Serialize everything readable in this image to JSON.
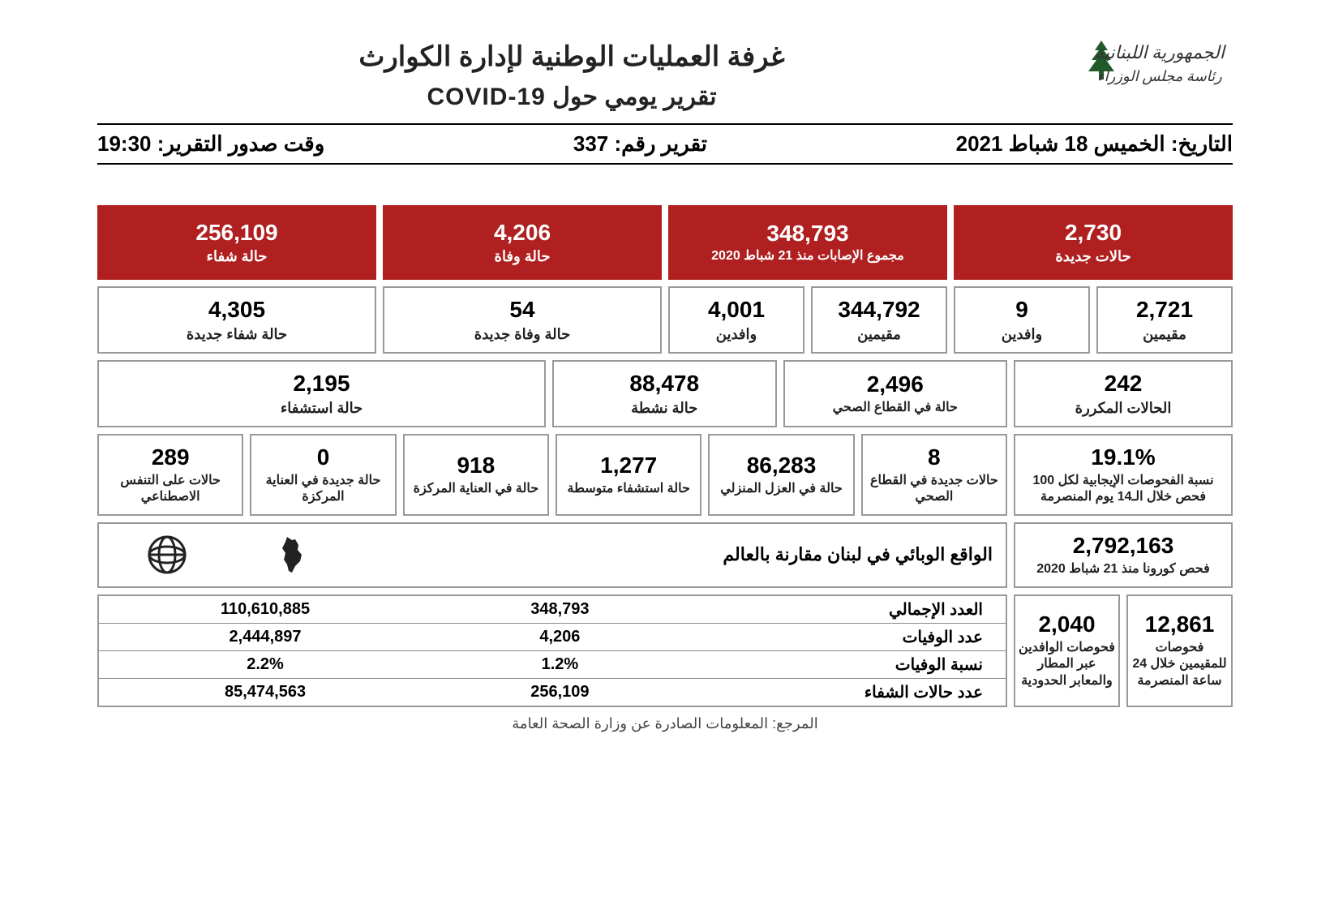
{
  "header": {
    "org_line1": "الجمهورية اللبنانية",
    "org_line2": "رئاسة مجلس الوزراء",
    "title1": "غرفة العمليات الوطنية لإدارة الكوارث",
    "title2": "تقرير يومي حول COVID-19"
  },
  "meta": {
    "date_label": "التاريخ:",
    "date_value": "الخميس 18 شباط 2021",
    "report_no_label": "تقرير رقم:",
    "report_no_value": "337",
    "time_label": "وقت صدور التقرير:",
    "time_value": "19:30"
  },
  "cards": {
    "new_cases": {
      "value": "2,730",
      "label": "حالات جديدة"
    },
    "total_cases": {
      "value": "348,793",
      "label": "مجموع الإصابات منذ 21 شباط 2020"
    },
    "deaths": {
      "value": "4,206",
      "label": "حالة وفاة"
    },
    "recoveries": {
      "value": "256,109",
      "label": "حالة شفاء"
    },
    "new_residents": {
      "value": "2,721",
      "label": "مقيمين"
    },
    "new_arrivals": {
      "value": "9",
      "label": "وافدين"
    },
    "total_residents": {
      "value": "344,792",
      "label": "مقيمين"
    },
    "total_arrivals": {
      "value": "4,001",
      "label": "وافدين"
    },
    "new_deaths": {
      "value": "54",
      "label": "حالة وفاة جديدة"
    },
    "new_recoveries": {
      "value": "4,305",
      "label": "حالة شفاء جديدة"
    },
    "repeated": {
      "value": "242",
      "label": "الحالات المكررة"
    },
    "health_sector": {
      "value": "2,496",
      "label": "حالة في القطاع الصحي"
    },
    "active": {
      "value": "88,478",
      "label": "حالة نشطة"
    },
    "hospitalized": {
      "value": "2,195",
      "label": "حالة استشفاء"
    },
    "positivity": {
      "value": "19.1%",
      "label": "نسبة الفحوصات الإيجابية لكل 100 فحص خلال الـ14 يوم المنصرمة"
    },
    "new_health_sector": {
      "value": "8",
      "label": "حالات جديدة في القطاع الصحي"
    },
    "home_iso": {
      "value": "86,283",
      "label": "حالة في العزل المنزلي"
    },
    "hosp_moderate": {
      "value": "1,277",
      "label": "حالة استشفاء متوسطة"
    },
    "icu": {
      "value": "918",
      "label": "حالة في العناية المركزة"
    },
    "new_icu": {
      "value": "0",
      "label": "حالة جديدة في العناية المركزة"
    },
    "ventilator": {
      "value": "289",
      "label": "حالات على التنفس الاصطناعي"
    },
    "total_tests": {
      "value": "2,792,163",
      "label": "فحص كورونا منذ 21 شباط 2020"
    },
    "tests_residents": {
      "value": "12,861",
      "label": "فحوصات للمقيمين خلال 24 ساعة المنصرمة"
    },
    "tests_arrivals": {
      "value": "2,040",
      "label": "فحوصات الوافدين عبر المطار والمعابر الحدودية"
    }
  },
  "world": {
    "title": "الواقع الوبائي في لبنان مقارنة بالعالم",
    "rows": [
      {
        "label": "العدد الإجمالي",
        "lebanon": "348,793",
        "world": "110,610,885"
      },
      {
        "label": "عدد الوفيات",
        "lebanon": "4,206",
        "world": "2,444,897"
      },
      {
        "label": "نسبة الوفيات",
        "lebanon": "1.2%",
        "world": "2.2%"
      },
      {
        "label": "عدد حالات الشفاء",
        "lebanon": "256,109",
        "world": "85,474,563"
      }
    ]
  },
  "footer": "المرجع: المعلومات الصادرة عن وزارة الصحة العامة",
  "style": {
    "red": "#b02020",
    "border": "#999999"
  }
}
